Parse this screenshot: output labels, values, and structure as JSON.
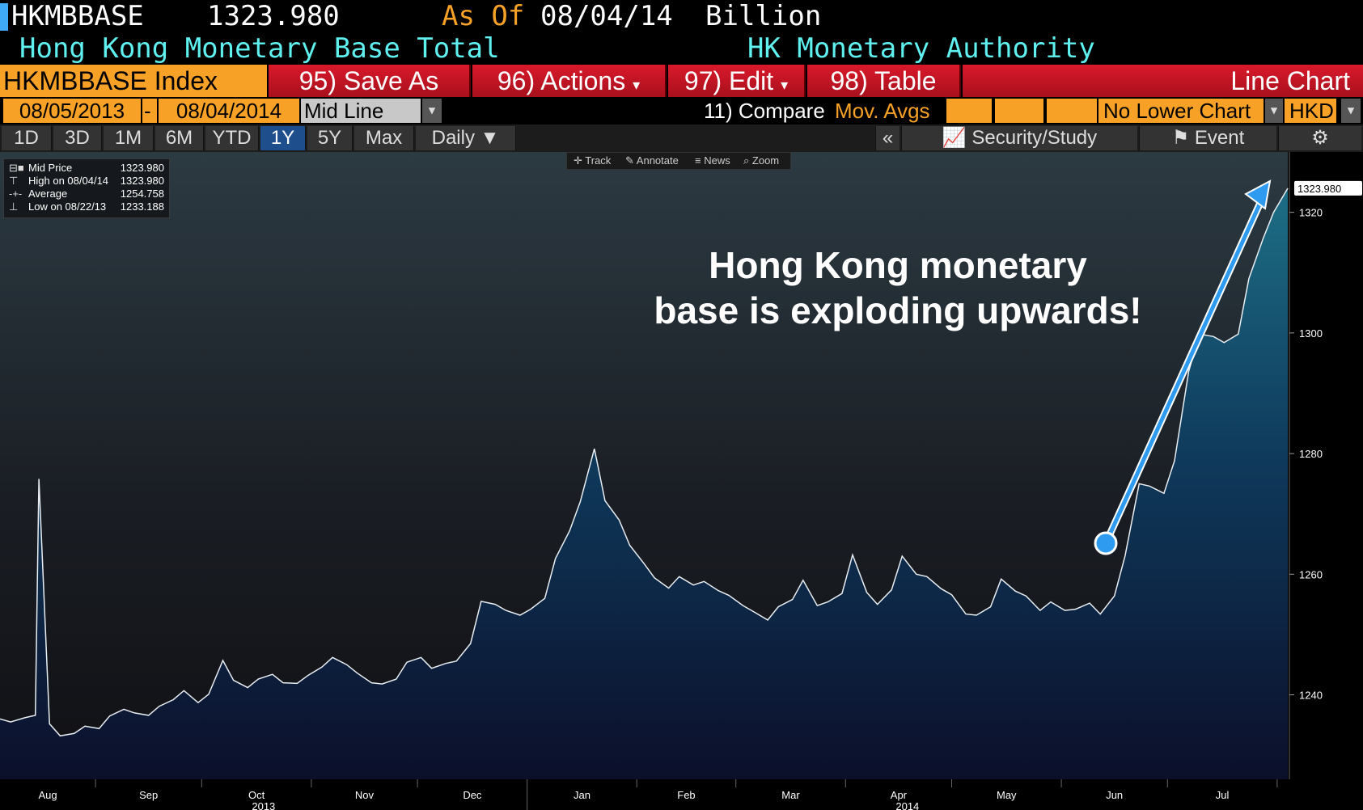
{
  "header": {
    "ticker": "HKMBBASE",
    "last_value": "1323.980",
    "as_of_label": "As Of",
    "as_of_date": "08/04/14",
    "units": "Billion",
    "description": "Hong Kong Monetary Base Total",
    "source": "HK Monetary Authority"
  },
  "toolbar": {
    "security": "HKMBBASE Index",
    "save_as": "95) Save As",
    "actions": "96) Actions",
    "edit": "97) Edit",
    "table": "98) Table",
    "chart_type": "Line Chart"
  },
  "range_bar": {
    "start_date": "08/05/2013",
    "dash": "-",
    "end_date": "08/04/2014",
    "line_type": "Mid Line",
    "compare_label": "11) Compare",
    "mov_avgs": "Mov. Avgs",
    "lower_chart": "No Lower Chart",
    "currency": "HKD"
  },
  "period_tabs": [
    "1D",
    "3D",
    "1M",
    "6M",
    "YTD",
    "1Y",
    "5Y",
    "Max"
  ],
  "active_period": "1Y",
  "frequency": "Daily",
  "right_buttons": {
    "collapse": "«",
    "security_study": "Security/Study",
    "event": "Event"
  },
  "chart_tools": [
    "Track",
    "Annotate",
    "News",
    "Zoom"
  ],
  "legend": {
    "rows": [
      {
        "label": "Mid Price",
        "value": "1323.980"
      },
      {
        "label": "High on 08/04/14",
        "value": "1323.980"
      },
      {
        "label": "Average",
        "value": "1254.758"
      },
      {
        "label": "Low on 08/22/13",
        "value": "1233.188"
      }
    ]
  },
  "annotation": {
    "line1": "Hong Kong monetary",
    "line2": "base is exploding upwards!"
  },
  "colors": {
    "accent_orange": "#f7a127",
    "toolbar_red": "#c8141f",
    "header_cyan": "#5ff0f0",
    "arrow_blue": "#2e9bf0",
    "area_top": "#1d6e86",
    "area_bottom": "#0b0f2a"
  },
  "chart_data": {
    "type": "area",
    "title": "",
    "xlabel": "",
    "ylabel": "",
    "ylim": [
      1226,
      1330
    ],
    "y_ticks": [
      1240,
      1260,
      1280,
      1300,
      1320
    ],
    "last_value_label": "1323.980",
    "x_month_labels": [
      "Aug",
      "Sep",
      "Oct",
      "Nov",
      "Dec",
      "Jan",
      "Feb",
      "Mar",
      "Apr",
      "May",
      "Jun",
      "Jul"
    ],
    "x_year_labels": [
      "2013",
      "2014"
    ],
    "series": [
      {
        "values": [
          {
            "x": "2013-08-05",
            "y": 1236.0
          },
          {
            "x": "2013-08-08",
            "y": 1235.5
          },
          {
            "x": "2013-08-12",
            "y": 1236.2
          },
          {
            "x": "2013-08-15",
            "y": 1236.6
          },
          {
            "x": "2013-08-16",
            "y": 1275.8
          },
          {
            "x": "2013-08-19",
            "y": 1235.2
          },
          {
            "x": "2013-08-22",
            "y": 1233.2
          },
          {
            "x": "2013-08-26",
            "y": 1233.6
          },
          {
            "x": "2013-08-29",
            "y": 1234.8
          },
          {
            "x": "2013-09-02",
            "y": 1234.4
          },
          {
            "x": "2013-09-05",
            "y": 1236.5
          },
          {
            "x": "2013-09-09",
            "y": 1237.6
          },
          {
            "x": "2013-09-12",
            "y": 1237.0
          },
          {
            "x": "2013-09-16",
            "y": 1236.6
          },
          {
            "x": "2013-09-19",
            "y": 1238.1
          },
          {
            "x": "2013-09-23",
            "y": 1239.2
          },
          {
            "x": "2013-09-26",
            "y": 1240.7
          },
          {
            "x": "2013-09-30",
            "y": 1238.7
          },
          {
            "x": "2013-10-03",
            "y": 1240.1
          },
          {
            "x": "2013-10-07",
            "y": 1245.7
          },
          {
            "x": "2013-10-10",
            "y": 1242.4
          },
          {
            "x": "2013-10-14",
            "y": 1241.2
          },
          {
            "x": "2013-10-17",
            "y": 1242.6
          },
          {
            "x": "2013-10-21",
            "y": 1243.4
          },
          {
            "x": "2013-10-24",
            "y": 1242.0
          },
          {
            "x": "2013-10-28",
            "y": 1241.9
          },
          {
            "x": "2013-10-31",
            "y": 1243.2
          },
          {
            "x": "2013-11-04",
            "y": 1244.6
          },
          {
            "x": "2013-11-07",
            "y": 1246.2
          },
          {
            "x": "2013-11-11",
            "y": 1245.0
          },
          {
            "x": "2013-11-14",
            "y": 1243.6
          },
          {
            "x": "2013-11-18",
            "y": 1242.0
          },
          {
            "x": "2013-11-21",
            "y": 1241.8
          },
          {
            "x": "2013-11-25",
            "y": 1242.6
          },
          {
            "x": "2013-11-28",
            "y": 1245.4
          },
          {
            "x": "2013-12-02",
            "y": 1246.2
          },
          {
            "x": "2013-12-05",
            "y": 1244.4
          },
          {
            "x": "2013-12-09",
            "y": 1245.2
          },
          {
            "x": "2013-12-12",
            "y": 1245.6
          },
          {
            "x": "2013-12-16",
            "y": 1248.5
          },
          {
            "x": "2013-12-19",
            "y": 1255.5
          },
          {
            "x": "2013-12-23",
            "y": 1255.0
          },
          {
            "x": "2013-12-26",
            "y": 1254.0
          },
          {
            "x": "2013-12-30",
            "y": 1253.2
          },
          {
            "x": "2014-01-02",
            "y": 1254.2
          },
          {
            "x": "2014-01-06",
            "y": 1256.0
          },
          {
            "x": "2014-01-09",
            "y": 1262.6
          },
          {
            "x": "2014-01-13",
            "y": 1267.2
          },
          {
            "x": "2014-01-16",
            "y": 1272.0
          },
          {
            "x": "2014-01-20",
            "y": 1280.8
          },
          {
            "x": "2014-01-23",
            "y": 1272.2
          },
          {
            "x": "2014-01-27",
            "y": 1269.0
          },
          {
            "x": "2014-01-30",
            "y": 1264.8
          },
          {
            "x": "2014-02-03",
            "y": 1261.8
          },
          {
            "x": "2014-02-06",
            "y": 1259.4
          },
          {
            "x": "2014-02-10",
            "y": 1257.7
          },
          {
            "x": "2014-02-13",
            "y": 1259.6
          },
          {
            "x": "2014-02-17",
            "y": 1258.2
          },
          {
            "x": "2014-02-20",
            "y": 1258.8
          },
          {
            "x": "2014-02-24",
            "y": 1257.3
          },
          {
            "x": "2014-02-27",
            "y": 1256.5
          },
          {
            "x": "2014-03-03",
            "y": 1254.8
          },
          {
            "x": "2014-03-06",
            "y": 1253.8
          },
          {
            "x": "2014-03-10",
            "y": 1252.4
          },
          {
            "x": "2014-03-13",
            "y": 1254.6
          },
          {
            "x": "2014-03-17",
            "y": 1255.8
          },
          {
            "x": "2014-03-20",
            "y": 1259.0
          },
          {
            "x": "2014-03-24",
            "y": 1254.8
          },
          {
            "x": "2014-03-27",
            "y": 1255.4
          },
          {
            "x": "2014-03-31",
            "y": 1256.8
          },
          {
            "x": "2014-04-03",
            "y": 1263.2
          },
          {
            "x": "2014-04-07",
            "y": 1257.0
          },
          {
            "x": "2014-04-10",
            "y": 1255.0
          },
          {
            "x": "2014-04-14",
            "y": 1257.4
          },
          {
            "x": "2014-04-17",
            "y": 1263.0
          },
          {
            "x": "2014-04-21",
            "y": 1260.0
          },
          {
            "x": "2014-04-24",
            "y": 1259.6
          },
          {
            "x": "2014-04-28",
            "y": 1257.6
          },
          {
            "x": "2014-05-01",
            "y": 1256.6
          },
          {
            "x": "2014-05-05",
            "y": 1253.4
          },
          {
            "x": "2014-05-08",
            "y": 1253.2
          },
          {
            "x": "2014-05-12",
            "y": 1254.6
          },
          {
            "x": "2014-05-15",
            "y": 1259.2
          },
          {
            "x": "2014-05-19",
            "y": 1257.2
          },
          {
            "x": "2014-05-22",
            "y": 1256.4
          },
          {
            "x": "2014-05-26",
            "y": 1254.0
          },
          {
            "x": "2014-05-29",
            "y": 1255.4
          },
          {
            "x": "2014-06-02",
            "y": 1254.0
          },
          {
            "x": "2014-06-05",
            "y": 1254.2
          },
          {
            "x": "2014-06-09",
            "y": 1255.2
          },
          {
            "x": "2014-06-12",
            "y": 1253.4
          },
          {
            "x": "2014-06-16",
            "y": 1256.4
          },
          {
            "x": "2014-06-19",
            "y": 1263.0
          },
          {
            "x": "2014-06-23",
            "y": 1275.0
          },
          {
            "x": "2014-06-26",
            "y": 1274.6
          },
          {
            "x": "2014-06-30",
            "y": 1273.4
          },
          {
            "x": "2014-07-03",
            "y": 1278.8
          },
          {
            "x": "2014-07-07",
            "y": 1293.6
          },
          {
            "x": "2014-07-10",
            "y": 1299.8
          },
          {
            "x": "2014-07-14",
            "y": 1299.4
          },
          {
            "x": "2014-07-17",
            "y": 1298.4
          },
          {
            "x": "2014-07-21",
            "y": 1299.8
          },
          {
            "x": "2014-07-24",
            "y": 1309.0
          },
          {
            "x": "2014-07-28",
            "y": 1315.6
          },
          {
            "x": "2014-07-31",
            "y": 1320.0
          },
          {
            "x": "2014-08-04",
            "y": 1323.98
          }
        ]
      }
    ]
  }
}
